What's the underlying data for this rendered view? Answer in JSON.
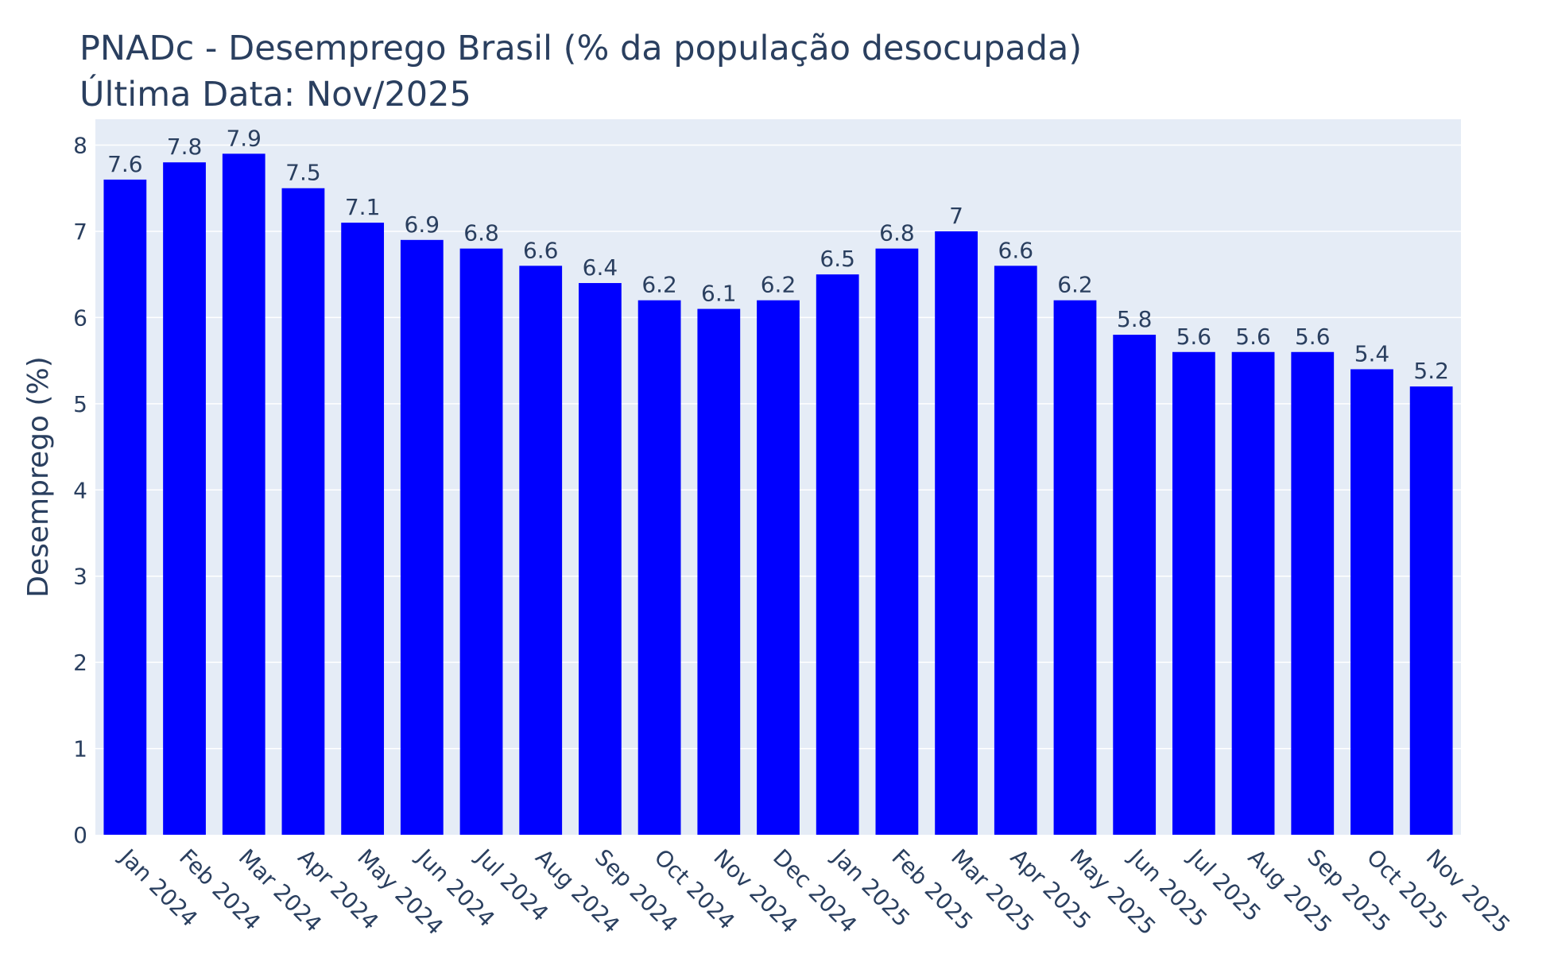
{
  "chart_data": {
    "type": "bar",
    "title": "PNADc - Desemprego Brasil (% da população desocupada)",
    "subtitle": "Última Data: Nov/2025",
    "xlabel": "",
    "ylabel": "Desemprego (%)",
    "ylim": [
      0,
      8.3
    ],
    "yticks": [
      0,
      1,
      2,
      3,
      4,
      5,
      6,
      7,
      8
    ],
    "grid": true,
    "legend": "none",
    "categories": [
      "Jan 2024",
      "Feb 2024",
      "Mar 2024",
      "Apr 2024",
      "May 2024",
      "Jun 2024",
      "Jul 2024",
      "Aug 2024",
      "Sep 2024",
      "Oct 2024",
      "Nov 2024",
      "Dec 2024",
      "Jan 2025",
      "Feb 2025",
      "Mar 2025",
      "Apr 2025",
      "May 2025",
      "Jun 2025",
      "Jul 2025",
      "Aug 2025",
      "Sep 2025",
      "Oct 2025",
      "Nov 2025"
    ],
    "values": [
      7.6,
      7.8,
      7.9,
      7.5,
      7.1,
      6.9,
      6.8,
      6.6,
      6.4,
      6.2,
      6.1,
      6.2,
      6.5,
      6.8,
      7,
      6.6,
      6.2,
      5.8,
      5.6,
      5.6,
      5.6,
      5.4,
      5.2
    ],
    "data_labels": [
      "7.6",
      "7.8",
      "7.9",
      "7.5",
      "7.1",
      "6.9",
      "6.8",
      "6.6",
      "6.4",
      "6.2",
      "6.1",
      "6.2",
      "6.5",
      "6.8",
      "7",
      "6.6",
      "6.2",
      "5.8",
      "5.6",
      "5.6",
      "5.6",
      "5.4",
      "5.2"
    ],
    "colors": {
      "bar": "#0000ff",
      "plot_bg": "#e5ecf6",
      "grid": "#ffffff",
      "text": "#2a3f5f"
    }
  }
}
